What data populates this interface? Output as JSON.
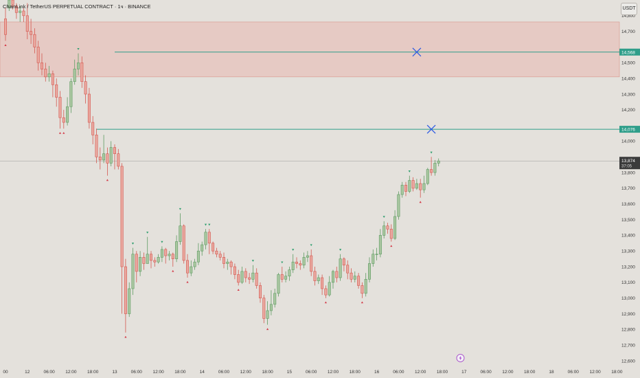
{
  "header": {
    "title": "ChainLink / TetherUS PERPETUAL CONTRACT · 1ч · BINANCE",
    "currency_button": "USDT"
  },
  "colors": {
    "background": "#e4e1dc",
    "bull": "#5e9b62",
    "bear": "#d4574f",
    "bull_fill": "#a9c6a0",
    "bear_fill": "#e9a89f",
    "zone": "#e8b8b1",
    "level_line": "#2f9e8a",
    "cross": "#2d5be3",
    "price_tag": "#3b3b3b"
  },
  "icons": [
    "lightning-icon"
  ],
  "chart_data": {
    "type": "candlestick",
    "title": "ChainLink / TetherUS PERPETUAL CONTRACT · 1ч · BINANCE",
    "y_range": [
      12600,
      14900
    ],
    "y_ticks": [
      12600,
      12700,
      12800,
      12900,
      13000,
      13100,
      13200,
      13300,
      13400,
      13500,
      13600,
      13700,
      13800,
      13900,
      14000,
      14100,
      14200,
      14300,
      14400,
      14500,
      14600,
      14700,
      14800
    ],
    "x_ticks": [
      {
        "i": 0,
        "label": "00"
      },
      {
        "i": 6,
        "label": "12"
      },
      {
        "i": 12,
        "label": "06:00"
      },
      {
        "i": 18,
        "label": "12:00"
      },
      {
        "i": 24,
        "label": "18:00"
      },
      {
        "i": 30,
        "label": "13"
      },
      {
        "i": 36,
        "label": "06:00"
      },
      {
        "i": 42,
        "label": "12:00"
      },
      {
        "i": 48,
        "label": "18:00"
      },
      {
        "i": 54,
        "label": "14"
      },
      {
        "i": 60,
        "label": "06:00"
      },
      {
        "i": 66,
        "label": "12:00"
      },
      {
        "i": 72,
        "label": "18:00"
      },
      {
        "i": 78,
        "label": "15"
      },
      {
        "i": 84,
        "label": "06:00"
      },
      {
        "i": 90,
        "label": "12:00"
      },
      {
        "i": 96,
        "label": "18:00"
      },
      {
        "i": 102,
        "label": "16"
      },
      {
        "i": 108,
        "label": "06:00"
      },
      {
        "i": 114,
        "label": "12:00"
      },
      {
        "i": 120,
        "label": "18:00"
      },
      {
        "i": 126,
        "label": "17"
      },
      {
        "i": 132,
        "label": "06:00"
      },
      {
        "i": 138,
        "label": "12:00"
      },
      {
        "i": 144,
        "label": "18:00"
      },
      {
        "i": 150,
        "label": "18"
      },
      {
        "i": 156,
        "label": "06:00"
      },
      {
        "i": 162,
        "label": "12:00"
      },
      {
        "i": 168,
        "label": "18:00"
      }
    ],
    "zone": {
      "low": 14410,
      "high": 14760
    },
    "levels": [
      {
        "value": 14568,
        "label": "14,568",
        "start_index": 30
      },
      {
        "value": 14076,
        "label": "14,076",
        "start_index": 25
      }
    ],
    "crosses": [
      {
        "index": 113,
        "value": 14568
      },
      {
        "index": 117,
        "value": 14076
      }
    ],
    "current_price": {
      "value": 13874,
      "label": "13,874",
      "countdown": "37:05"
    },
    "candles": [
      [
        14780,
        14680,
        14850,
        14640
      ],
      [
        14850,
        14900,
        14920,
        14830
      ],
      [
        14900,
        14860,
        14940,
        14840
      ],
      [
        14860,
        14820,
        14880,
        14780
      ],
      [
        14820,
        14830,
        14860,
        14760
      ],
      [
        14830,
        14800,
        14850,
        14760
      ],
      [
        14800,
        14700,
        14880,
        14650
      ],
      [
        14700,
        14680,
        14780,
        14620
      ],
      [
        14680,
        14600,
        14720,
        14560
      ],
      [
        14600,
        14500,
        14640,
        14450
      ],
      [
        14500,
        14460,
        14560,
        14420
      ],
      [
        14460,
        14410,
        14500,
        14380
      ],
      [
        14410,
        14430,
        14480,
        14380
      ],
      [
        14430,
        14360,
        14450,
        14280
      ],
      [
        14360,
        14280,
        14400,
        14220
      ],
      [
        14280,
        14150,
        14320,
        14080
      ],
      [
        14150,
        14120,
        14200,
        14080
      ],
      [
        14120,
        14220,
        14280,
        14100
      ],
      [
        14220,
        14380,
        14400,
        14180
      ],
      [
        14380,
        14460,
        14520,
        14360
      ],
      [
        14460,
        14500,
        14560,
        14420
      ],
      [
        14500,
        14380,
        14540,
        14340
      ],
      [
        14380,
        14300,
        14420,
        14240
      ],
      [
        14300,
        14120,
        14340,
        14080
      ],
      [
        14120,
        14040,
        14160,
        13980
      ],
      [
        14040,
        13900,
        14080,
        13860
      ],
      [
        13900,
        13880,
        13960,
        13820
      ],
      [
        13880,
        13920,
        14040,
        13860
      ],
      [
        13920,
        13860,
        13960,
        13780
      ],
      [
        13860,
        13960,
        14000,
        13840
      ],
      [
        13960,
        13920,
        13980,
        13820
      ],
      [
        13920,
        13840,
        13950,
        13820
      ],
      [
        13840,
        13200,
        13860,
        12900
      ],
      [
        13200,
        12900,
        13250,
        12780
      ],
      [
        12900,
        13060,
        13100,
        12880
      ],
      [
        13060,
        13280,
        13320,
        13020
      ],
      [
        13280,
        13170,
        13300,
        13100
      ],
      [
        13170,
        13260,
        13300,
        13140
      ],
      [
        13260,
        13220,
        13290,
        13180
      ],
      [
        13220,
        13280,
        13390,
        13220
      ],
      [
        13280,
        13240,
        13300,
        13190
      ],
      [
        13240,
        13230,
        13260,
        13200
      ],
      [
        13230,
        13260,
        13280,
        13220
      ],
      [
        13260,
        13310,
        13330,
        13230
      ],
      [
        13310,
        13270,
        13320,
        13220
      ],
      [
        13270,
        13280,
        13300,
        13240
      ],
      [
        13280,
        13250,
        13290,
        13200
      ],
      [
        13250,
        13360,
        13400,
        13230
      ],
      [
        13360,
        13460,
        13540,
        13340
      ],
      [
        13460,
        13240,
        13470,
        13220
      ],
      [
        13240,
        13160,
        13280,
        13130
      ],
      [
        13160,
        13200,
        13240,
        13140
      ],
      [
        13200,
        13230,
        13250,
        13180
      ],
      [
        13230,
        13300,
        13350,
        13210
      ],
      [
        13300,
        13340,
        13360,
        13270
      ],
      [
        13340,
        13420,
        13440,
        13310
      ],
      [
        13420,
        13350,
        13440,
        13280
      ],
      [
        13350,
        13300,
        13360,
        13280
      ],
      [
        13300,
        13280,
        13320,
        13260
      ],
      [
        13280,
        13260,
        13300,
        13240
      ],
      [
        13260,
        13220,
        13290,
        13190
      ],
      [
        13220,
        13230,
        13250,
        13180
      ],
      [
        13230,
        13200,
        13240,
        13150
      ],
      [
        13200,
        13150,
        13220,
        13120
      ],
      [
        13150,
        13100,
        13180,
        13080
      ],
      [
        13100,
        13170,
        13200,
        13090
      ],
      [
        13170,
        13130,
        13190,
        13100
      ],
      [
        13130,
        13120,
        13160,
        13090
      ],
      [
        13120,
        13160,
        13210,
        13100
      ],
      [
        13160,
        13080,
        13190,
        13060
      ],
      [
        13080,
        13000,
        13100,
        12970
      ],
      [
        13000,
        12870,
        13020,
        12840
      ],
      [
        12870,
        12920,
        12980,
        12830
      ],
      [
        12920,
        12960,
        13050,
        12890
      ],
      [
        12960,
        13030,
        13060,
        12940
      ],
      [
        13030,
        13150,
        13160,
        13010
      ],
      [
        13150,
        13120,
        13200,
        13100
      ],
      [
        13120,
        13140,
        13170,
        13100
      ],
      [
        13140,
        13180,
        13200,
        13110
      ],
      [
        13180,
        13230,
        13280,
        13160
      ],
      [
        13230,
        13220,
        13260,
        13190
      ],
      [
        13220,
        13210,
        13240,
        13180
      ],
      [
        13210,
        13260,
        13290,
        13190
      ],
      [
        13260,
        13270,
        13300,
        13230
      ],
      [
        13270,
        13170,
        13310,
        13140
      ],
      [
        13170,
        13110,
        13200,
        13080
      ],
      [
        13110,
        13130,
        13150,
        13090
      ],
      [
        13130,
        13060,
        13150,
        13020
      ],
      [
        13060,
        13020,
        13080,
        13000
      ],
      [
        13020,
        13100,
        13140,
        13010
      ],
      [
        13100,
        13170,
        13180,
        13060
      ],
      [
        13170,
        13130,
        13200,
        13100
      ],
      [
        13130,
        13250,
        13280,
        13110
      ],
      [
        13250,
        13210,
        13260,
        13170
      ],
      [
        13210,
        13160,
        13240,
        13120
      ],
      [
        13160,
        13120,
        13190,
        13100
      ],
      [
        13120,
        13140,
        13170,
        13100
      ],
      [
        13140,
        13080,
        13160,
        13060
      ],
      [
        13080,
        13030,
        13100,
        13000
      ],
      [
        13030,
        13120,
        13160,
        13010
      ],
      [
        13120,
        13220,
        13260,
        13100
      ],
      [
        13220,
        13280,
        13310,
        13200
      ],
      [
        13280,
        13280,
        13320,
        13240
      ],
      [
        13280,
        13400,
        13440,
        13260
      ],
      [
        13400,
        13460,
        13490,
        13380
      ],
      [
        13460,
        13440,
        13480,
        13410
      ],
      [
        13440,
        13380,
        13470,
        13360
      ],
      [
        13380,
        13520,
        13560,
        13370
      ],
      [
        13520,
        13660,
        13680,
        13500
      ],
      [
        13660,
        13720,
        13740,
        13640
      ],
      [
        13720,
        13680,
        13740,
        13650
      ],
      [
        13680,
        13750,
        13780,
        13670
      ],
      [
        13750,
        13700,
        13770,
        13680
      ],
      [
        13700,
        13730,
        13760,
        13690
      ],
      [
        13730,
        13690,
        13760,
        13640
      ],
      [
        13690,
        13730,
        13780,
        13670
      ],
      [
        13730,
        13820,
        13830,
        13720
      ],
      [
        13820,
        13800,
        13900,
        13780
      ],
      [
        13800,
        13860,
        13880,
        13780
      ],
      [
        13860,
        13874,
        13890,
        13840
      ]
    ]
  }
}
